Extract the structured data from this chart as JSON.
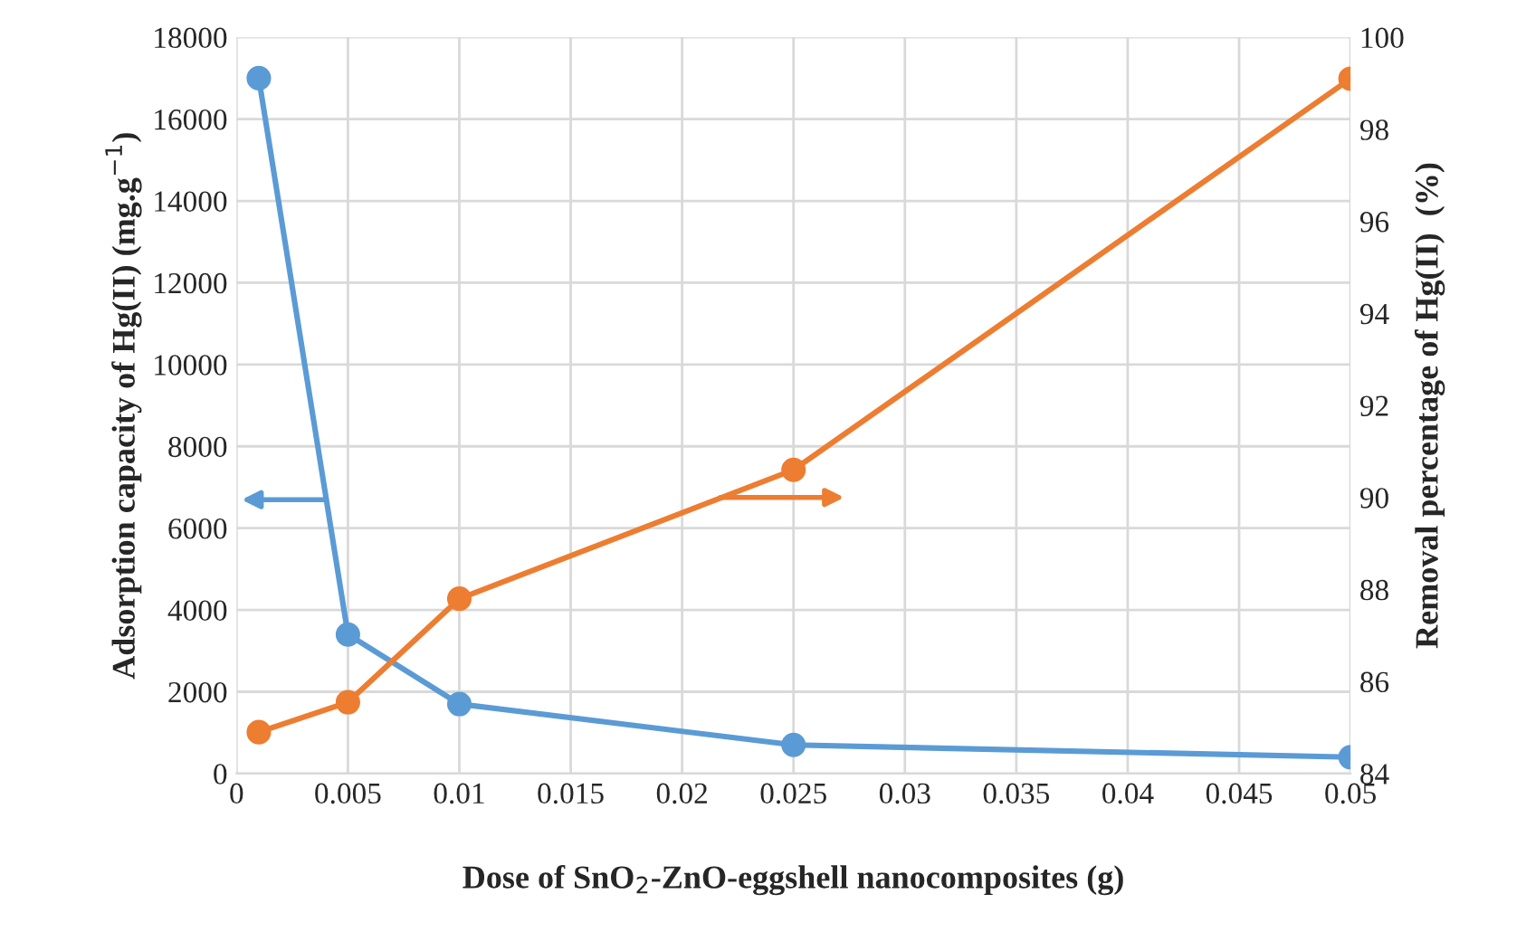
{
  "chart_data": {
    "type": "line",
    "xlabel": "Dose of SnO$_{2}$-ZnO-eggshell nanocomposites (g)",
    "ylabel": "Adsorption capacity of Hg(II) (mg.g$^{−1}$)",
    "y2label": "Removal percentage of Hg(II)  (%)",
    "x": [
      0.001,
      0.005,
      0.01,
      0.025,
      0.05
    ],
    "series": [
      {
        "color": "#5b9bd5",
        "values": [
          17000,
          3400,
          1700,
          700,
          400
        ]
      },
      {
        "color": "#ed7d31",
        "values": [
          84.9,
          85.55,
          87.8,
          90.6,
          99.1
        ],
        "axis": "y2"
      }
    ],
    "xlim": [
      0,
      0.05
    ],
    "xticks": [
      0,
      0.005,
      0.01,
      0.015,
      0.02,
      0.025,
      0.03,
      0.035,
      0.04,
      0.045,
      0.05
    ],
    "ylim": [
      0,
      18000
    ],
    "yticks": [
      0,
      2000,
      4000,
      6000,
      8000,
      10000,
      12000,
      14000,
      16000,
      18000
    ],
    "y2lim": [
      84,
      100
    ],
    "y2ticks": [
      84,
      86,
      88,
      90,
      92,
      94,
      96,
      98,
      100
    ],
    "grid": true,
    "marker": "circle",
    "line_style": "solid"
  }
}
